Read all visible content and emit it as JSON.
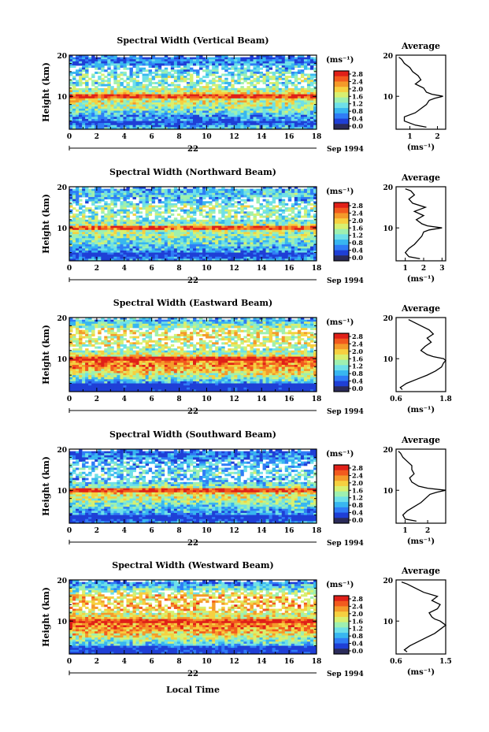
{
  "figure": {
    "xlabel": "Local Time",
    "date_label": "Sep 1994",
    "day_label": "22",
    "colorbar_unit_label": "(ms⁻¹)",
    "colorbar_ticks": [
      "2.8",
      "2.4",
      "2.0",
      "1.6",
      "1.2",
      "0.8",
      "0.4",
      "0.0"
    ],
    "colors": [
      "#2b2b5a",
      "#1f3fd6",
      "#2f7cf6",
      "#38b6f0",
      "#6ee0e8",
      "#9ef0b0",
      "#d8f070",
      "#f6d040",
      "#f49a2a",
      "#f25a1e",
      "#e02018"
    ]
  },
  "chart_data": [
    {
      "type": "heatmap",
      "title": "Spectral Width (Vertical Beam)",
      "ylabel": "Height (km)",
      "xlim": [
        0,
        18
      ],
      "ylim": [
        2,
        20
      ],
      "x_ticks": [
        "0",
        "2",
        "4",
        "6",
        "8",
        "10",
        "12",
        "14",
        "16",
        "18"
      ],
      "y_ticks": [
        "20",
        "10"
      ],
      "profile": {
        "title": "Average",
        "xlabel": "(ms⁻¹)",
        "x_ticks": [
          "1",
          "2"
        ],
        "xlim": [
          0.5,
          2.3
        ],
        "heights": [
          2.5,
          3,
          4,
          5,
          6,
          7,
          8,
          9,
          9.5,
          10,
          10.5,
          11,
          12,
          13,
          14,
          15,
          16,
          17,
          18,
          19,
          19.5
        ],
        "values": [
          1.6,
          1.2,
          0.8,
          0.8,
          1.2,
          1.4,
          1.6,
          1.7,
          1.9,
          2.2,
          1.8,
          1.6,
          1.5,
          1.2,
          1.4,
          1.3,
          1.1,
          1.0,
          0.8,
          0.7,
          0.6
        ]
      }
    },
    {
      "type": "heatmap",
      "title": "Spectral Width (Northward Beam)",
      "ylabel": "Height (km)",
      "xlim": [
        0,
        18
      ],
      "ylim": [
        2,
        20
      ],
      "x_ticks": [
        "0",
        "2",
        "4",
        "6",
        "8",
        "10",
        "12",
        "14",
        "16",
        "18"
      ],
      "y_ticks": [
        "20",
        "10"
      ],
      "profile": {
        "title": "Average",
        "xlabel": "(ms⁻¹)",
        "x_ticks": [
          "1",
          "2",
          "3"
        ],
        "xlim": [
          0.5,
          3.2
        ],
        "heights": [
          2.5,
          3,
          4,
          5,
          6,
          7,
          8,
          9,
          9.5,
          10,
          10.5,
          11,
          12,
          13,
          14,
          15,
          16,
          17,
          18,
          19,
          19.5
        ],
        "values": [
          1.8,
          1.2,
          1.0,
          1.2,
          1.5,
          1.7,
          1.9,
          2.0,
          2.3,
          3.0,
          2.2,
          1.9,
          1.6,
          2.0,
          1.5,
          2.1,
          1.4,
          1.2,
          1.5,
          1.3,
          1.0
        ]
      }
    },
    {
      "type": "heatmap",
      "title": "Spectral Width (Eastward Beam)",
      "ylabel": "Height (km)",
      "xlim": [
        0,
        18
      ],
      "ylim": [
        2,
        20
      ],
      "x_ticks": [
        "0",
        "2",
        "4",
        "6",
        "8",
        "10",
        "12",
        "14",
        "16",
        "18"
      ],
      "y_ticks": [
        "20",
        "10"
      ],
      "profile": {
        "title": "Average",
        "xlabel": "(ms⁻¹)",
        "x_ticks": [
          "0.6",
          "1.8"
        ],
        "xlim": [
          0.6,
          1.8
        ],
        "heights": [
          2.5,
          3,
          4,
          5,
          6,
          7,
          8,
          9,
          9.5,
          10,
          10.5,
          11,
          12,
          13,
          14,
          15,
          16,
          17,
          18,
          19,
          19.5
        ],
        "values": [
          0.75,
          0.7,
          0.85,
          1.1,
          1.35,
          1.55,
          1.7,
          1.75,
          1.8,
          1.75,
          1.5,
          1.35,
          1.2,
          1.3,
          1.45,
          1.35,
          1.5,
          1.4,
          1.2,
          1.0,
          0.9
        ]
      }
    },
    {
      "type": "heatmap",
      "title": "Spectral Width (Southward Beam)",
      "ylabel": "Height (km)",
      "xlim": [
        0,
        18
      ],
      "ylim": [
        2,
        20
      ],
      "x_ticks": [
        "0",
        "2",
        "4",
        "6",
        "8",
        "10",
        "12",
        "14",
        "16",
        "18"
      ],
      "y_ticks": [
        "20",
        "10"
      ],
      "profile": {
        "title": "Average",
        "xlabel": "(ms⁻¹)",
        "x_ticks": [
          "1",
          "2"
        ],
        "xlim": [
          0.6,
          2.8
        ],
        "heights": [
          2.5,
          3,
          4,
          5,
          6,
          7,
          8,
          9,
          9.5,
          10,
          10.5,
          11,
          12,
          13,
          14,
          15,
          16,
          17,
          18,
          19,
          19.5
        ],
        "values": [
          1.5,
          1.0,
          0.9,
          1.1,
          1.4,
          1.7,
          1.9,
          2.1,
          2.4,
          2.8,
          2.0,
          1.6,
          1.3,
          1.2,
          1.4,
          1.3,
          1.3,
          1.1,
          0.9,
          0.8,
          0.7
        ]
      }
    },
    {
      "type": "heatmap",
      "title": "Spectral Width (Westward Beam)",
      "ylabel": "Height (km)",
      "xlim": [
        0,
        18
      ],
      "ylim": [
        2,
        20
      ],
      "x_ticks": [
        "0",
        "2",
        "4",
        "6",
        "8",
        "10",
        "12",
        "14",
        "16",
        "18"
      ],
      "y_ticks": [
        "20",
        "10"
      ],
      "profile": {
        "title": "Average",
        "xlabel": "(ms⁻¹)",
        "x_ticks": [
          "0.6",
          "1.5"
        ],
        "xlim": [
          0.6,
          1.5
        ],
        "heights": [
          2.5,
          3,
          4,
          5,
          6,
          7,
          8,
          9,
          9.5,
          10,
          10.5,
          11,
          12,
          13,
          14,
          15,
          16,
          17,
          18,
          19,
          19.5
        ],
        "values": [
          0.8,
          0.75,
          0.85,
          1.0,
          1.15,
          1.3,
          1.4,
          1.5,
          1.45,
          1.4,
          1.3,
          1.25,
          1.2,
          1.35,
          1.4,
          1.25,
          1.35,
          1.1,
          0.95,
          0.8,
          0.7
        ]
      }
    }
  ]
}
